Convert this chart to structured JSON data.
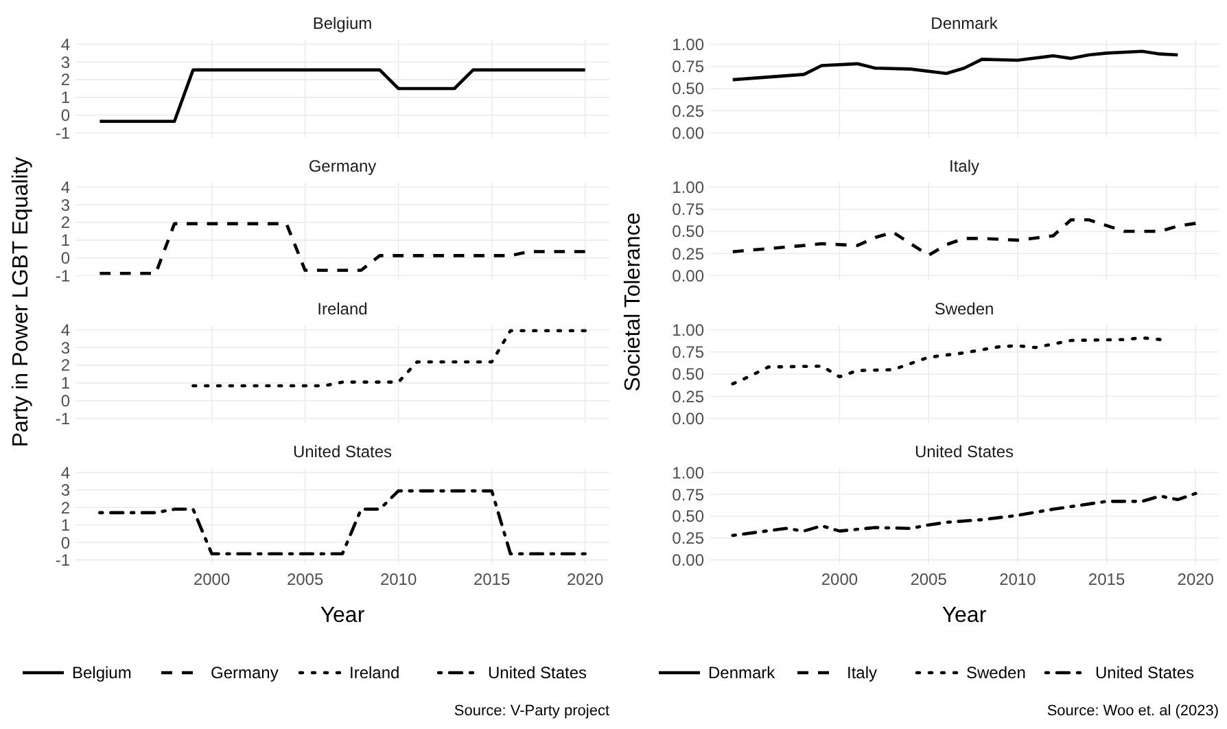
{
  "chart_data": [
    {
      "type": "line",
      "title": "Belgium",
      "ylabel": "Party in Power LGBT Equality",
      "x": [
        1994,
        1998,
        1999,
        2009,
        2010,
        2013,
        2014,
        2020
      ],
      "series": [
        {
          "name": "Belgium",
          "color": "#000000",
          "line_style": "solid",
          "values": [
            -0.35,
            -0.35,
            2.55,
            2.55,
            1.5,
            1.5,
            2.55,
            2.55
          ]
        }
      ],
      "xlim": [
        1992.7,
        2021.3
      ],
      "xticks": [
        2000,
        2005,
        2010,
        2015,
        2020
      ],
      "ylim": [
        -1.25,
        4.25
      ],
      "yticks": [
        -1,
        0,
        1,
        2,
        3,
        4
      ],
      "grid": true,
      "legend": "bottom",
      "tick_labels": "y"
    },
    {
      "type": "line",
      "title": "Germany",
      "x": [
        1994,
        1997,
        1998,
        2004,
        2005,
        2008,
        2009,
        2016,
        2017,
        2020
      ],
      "series": [
        {
          "name": "Germany",
          "color": "#000000",
          "line_style": "dashed",
          "values": [
            -0.87,
            -0.87,
            1.93,
            1.93,
            -0.7,
            -0.7,
            0.13,
            0.13,
            0.36,
            0.36
          ]
        }
      ],
      "xlim": [
        1992.7,
        2021.3
      ],
      "xticks": [
        2000,
        2005,
        2010,
        2015,
        2020
      ],
      "ylim": [
        -1.25,
        4.25
      ],
      "yticks": [
        -1,
        0,
        1,
        2,
        3,
        4
      ],
      "grid": true,
      "legend": "bottom",
      "tick_labels": "y"
    },
    {
      "type": "line",
      "title": "Ireland",
      "x": [
        1999,
        2006,
        2007,
        2010,
        2011,
        2015,
        2016,
        2020
      ],
      "series": [
        {
          "name": "Ireland",
          "color": "#000000",
          "line_style": "dotted",
          "values": [
            0.84,
            0.84,
            1.05,
            1.05,
            2.19,
            2.19,
            3.95,
            3.95
          ]
        }
      ],
      "xlim": [
        1992.7,
        2021.3
      ],
      "xticks": [
        2000,
        2005,
        2010,
        2015,
        2020
      ],
      "ylim": [
        -1.25,
        4.25
      ],
      "yticks": [
        -1,
        0,
        1,
        2,
        3,
        4
      ],
      "grid": true,
      "legend": "bottom",
      "tick_labels": "y"
    },
    {
      "type": "line",
      "title": "United States",
      "xlabel": "Year",
      "annotations": [
        "Source: V-Party project"
      ],
      "x": [
        1994,
        1997,
        1998,
        1999,
        2000,
        2007,
        2008,
        2009,
        2010,
        2015,
        2016,
        2020
      ],
      "series": [
        {
          "name": "United States",
          "color": "#000000",
          "line_style": "dashdot",
          "values": [
            1.7,
            1.7,
            1.9,
            1.9,
            -0.65,
            -0.65,
            1.9,
            1.9,
            2.95,
            2.95,
            -0.65,
            -0.65
          ]
        }
      ],
      "xlim": [
        1992.7,
        2021.3
      ],
      "xticks": [
        2000,
        2005,
        2010,
        2015,
        2020
      ],
      "ylim": [
        -1.25,
        4.25
      ],
      "yticks": [
        -1,
        0,
        1,
        2,
        3,
        4
      ],
      "grid": true,
      "legend": "bottom"
    },
    {
      "type": "line",
      "title": "Denmark",
      "ylabel": "Societal Tolerance",
      "x": [
        1994,
        1998,
        1999,
        2001,
        2002,
        2004,
        2006,
        2007,
        2008,
        2010,
        2012,
        2013,
        2014,
        2015,
        2017,
        2018,
        2019
      ],
      "series": [
        {
          "name": "Denmark",
          "color": "#000000",
          "line_style": "solid",
          "values": [
            0.6,
            0.66,
            0.76,
            0.78,
            0.73,
            0.72,
            0.67,
            0.73,
            0.83,
            0.82,
            0.87,
            0.84,
            0.88,
            0.9,
            0.92,
            0.89,
            0.88
          ]
        }
      ],
      "xlim": [
        1992.7,
        2021.3
      ],
      "xticks": [
        2000,
        2005,
        2010,
        2015,
        2020
      ],
      "ylim": [
        -0.05,
        1.05
      ],
      "yticks": [
        {
          "value": 0,
          "label": "0.00"
        },
        {
          "value": 0.25,
          "label": "0.25"
        },
        {
          "value": 0.5,
          "label": "0.50"
        },
        {
          "value": 0.75,
          "label": "0.75"
        },
        {
          "value": 1,
          "label": "1.00"
        }
      ],
      "grid": true,
      "legend": "bottom",
      "tick_labels": "y"
    },
    {
      "type": "line",
      "title": "Italy",
      "x": [
        1994,
        1998,
        1999,
        2001,
        2002,
        2003,
        2005,
        2006,
        2007,
        2008,
        2010,
        2012,
        2013,
        2014,
        2016,
        2018,
        2019,
        2020
      ],
      "series": [
        {
          "name": "Italy",
          "color": "#000000",
          "line_style": "dashed",
          "values": [
            0.27,
            0.34,
            0.36,
            0.34,
            0.43,
            0.49,
            0.23,
            0.35,
            0.42,
            0.42,
            0.4,
            0.45,
            0.63,
            0.63,
            0.5,
            0.5,
            0.56,
            0.59
          ]
        }
      ],
      "xlim": [
        1992.7,
        2021.3
      ],
      "xticks": [
        2000,
        2005,
        2010,
        2015,
        2020
      ],
      "ylim": [
        -0.05,
        1.05
      ],
      "yticks": [
        {
          "value": 0,
          "label": "0.00"
        },
        {
          "value": 0.25,
          "label": "0.25"
        },
        {
          "value": 0.5,
          "label": "0.50"
        },
        {
          "value": 0.75,
          "label": "0.75"
        },
        {
          "value": 1,
          "label": "1.00"
        }
      ],
      "grid": true,
      "legend": "bottom",
      "tick_labels": "y"
    },
    {
      "type": "line",
      "title": "Sweden",
      "x": [
        1994,
        1995,
        1996,
        1999,
        2000,
        2001,
        2003,
        2005,
        2007,
        2009,
        2010,
        2011,
        2013,
        2016,
        2017,
        2018
      ],
      "series": [
        {
          "name": "Sweden",
          "color": "#000000",
          "line_style": "dotted",
          "values": [
            0.39,
            0.48,
            0.58,
            0.59,
            0.47,
            0.54,
            0.55,
            0.69,
            0.74,
            0.81,
            0.82,
            0.8,
            0.88,
            0.89,
            0.91,
            0.89
          ]
        }
      ],
      "xlim": [
        1992.7,
        2021.3
      ],
      "xticks": [
        2000,
        2005,
        2010,
        2015,
        2020
      ],
      "ylim": [
        -0.05,
        1.05
      ],
      "yticks": [
        {
          "value": 0,
          "label": "0.00"
        },
        {
          "value": 0.25,
          "label": "0.25"
        },
        {
          "value": 0.5,
          "label": "0.50"
        },
        {
          "value": 0.75,
          "label": "0.75"
        },
        {
          "value": 1,
          "label": "1.00"
        }
      ],
      "grid": true,
      "legend": "bottom",
      "tick_labels": "y"
    },
    {
      "type": "line",
      "title": "United States",
      "xlabel": "Year",
      "annotations": [
        "Source: Woo et. al (2023)"
      ],
      "x": [
        1994,
        1997,
        1998,
        1999,
        2000,
        2002,
        2004,
        2005,
        2006,
        2008,
        2010,
        2012,
        2015,
        2017,
        2018,
        2019,
        2020
      ],
      "series": [
        {
          "name": "United States",
          "color": "#000000",
          "line_style": "dashdot",
          "values": [
            0.28,
            0.36,
            0.33,
            0.39,
            0.33,
            0.37,
            0.36,
            0.4,
            0.43,
            0.46,
            0.51,
            0.58,
            0.67,
            0.67,
            0.73,
            0.69,
            0.76
          ]
        }
      ],
      "xlim": [
        1992.7,
        2021.3
      ],
      "xticks": [
        2000,
        2005,
        2010,
        2015,
        2020
      ],
      "ylim": [
        -0.05,
        1.05
      ],
      "yticks": [
        {
          "value": 0,
          "label": "0.00"
        },
        {
          "value": 0.25,
          "label": "0.25"
        },
        {
          "value": 0.5,
          "label": "0.50"
        },
        {
          "value": 0.75,
          "label": "0.75"
        },
        {
          "value": 1,
          "label": "1.00"
        }
      ],
      "grid": true,
      "legend": "bottom"
    }
  ]
}
